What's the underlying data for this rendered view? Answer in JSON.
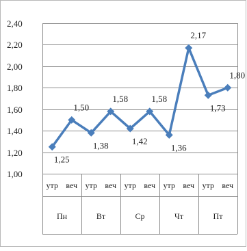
{
  "chart_data": {
    "type": "line",
    "title": "",
    "xlabel": "",
    "ylabel": "",
    "ylim": [
      1.0,
      2.4
    ],
    "yticks": [
      "1,00",
      "1,20",
      "1,40",
      "1,60",
      "1,80",
      "2,00",
      "2,20",
      "2,40"
    ],
    "grid": true,
    "days": [
      "Пн",
      "Вт",
      "Ср",
      "Чт",
      "Пт"
    ],
    "sub_categories": [
      "утр",
      "веч"
    ],
    "categories": [
      "Пн утр",
      "Пн веч",
      "Вт утр",
      "Вт веч",
      "Ср утр",
      "Ср веч",
      "Чт утр",
      "Чт веч",
      "Пт утр",
      "Пт веч"
    ],
    "series": [
      {
        "values": [
          1.25,
          1.5,
          1.38,
          1.58,
          1.42,
          1.58,
          1.36,
          2.17,
          1.73,
          1.8
        ],
        "labels": [
          "1,25",
          "1,50",
          "1,38",
          "1,58",
          "1,42",
          "1,58",
          "1,36",
          "2,17",
          "1,73",
          "1,80"
        ],
        "label_positions": [
          "below",
          "above",
          "below",
          "above",
          "below",
          "above",
          "below",
          "above",
          "below",
          "above"
        ],
        "color": "#4a7ebb"
      }
    ],
    "colors": {
      "frame": "#b8b8b8",
      "grid": "#8c8c8c",
      "line": "#4a7ebb"
    }
  }
}
